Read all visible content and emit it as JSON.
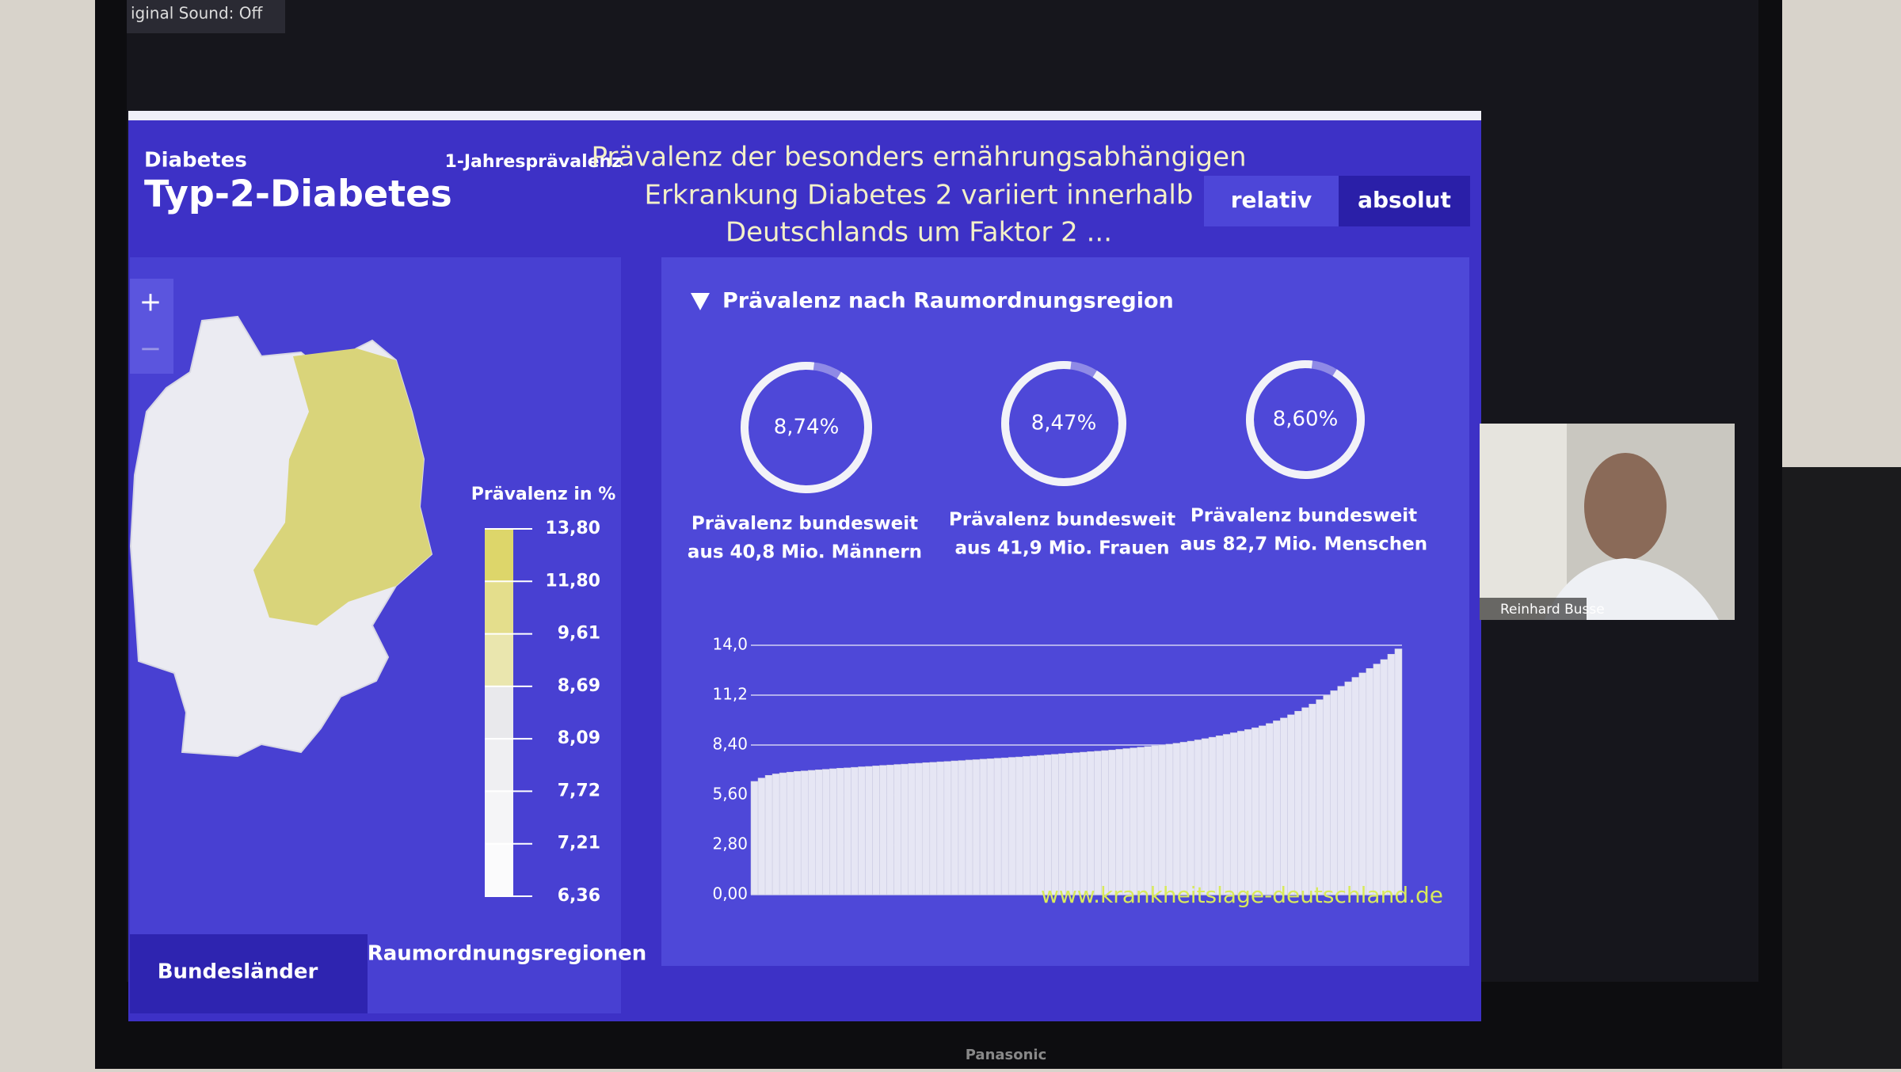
{
  "top_bar": {
    "sound": "iginal Sound: Off"
  },
  "header": {
    "category": "Diabetes",
    "title": "Typ-2-Diabetes",
    "measure": "1-Jahresprävalenz",
    "headline": [
      "Prävalenz der besonders ernährungsabhängigen",
      "Erkrankung Diabetes 2 variiert innerhalb",
      "Deutschlands um Faktor 2 ..."
    ]
  },
  "toggle": {
    "options": [
      "relativ",
      "absolut"
    ]
  },
  "map": {
    "zoom_in": "+",
    "zoom_out": "−",
    "legend_title": "Prävalenz in %",
    "legend_ticks": [
      {
        "value": 13.8,
        "label": "13,80"
      },
      {
        "value": 11.8,
        "label": "11,80"
      },
      {
        "value": 9.61,
        "label": "9,61"
      },
      {
        "value": 8.69,
        "label": "8,69"
      },
      {
        "value": 8.09,
        "label": "8,09"
      },
      {
        "value": 7.72,
        "label": "7,72"
      },
      {
        "value": 7.21,
        "label": "7,21"
      },
      {
        "value": 6.36,
        "label": "6,36"
      }
    ],
    "tabs": [
      "Bundesländer",
      "Raumordnungsregionen"
    ]
  },
  "panel": {
    "heading": "Prävalenz nach Raumordnungsregion",
    "donuts": [
      {
        "value": 8.74,
        "label": "8,74%",
        "caption": [
          "Prävalenz bundesweit",
          "aus 40,8 Mio. Männern"
        ]
      },
      {
        "value": 8.47,
        "label": "8,47%",
        "caption": [
          "Prävalenz bundesweit",
          "aus 41,9 Mio. Frauen"
        ]
      },
      {
        "value": 8.6,
        "label": "8,60%",
        "caption": [
          "Prävalenz bundesweit",
          "aus 82,7 Mio. Menschen"
        ]
      }
    ],
    "url": "www.krankheitslage-deutschland.de"
  },
  "chart": {
    "type": "bar",
    "ylim": [
      0,
      14
    ],
    "yticks": [
      {
        "value": 0,
        "label": "0,00"
      },
      {
        "value": 2.8,
        "label": "2,80"
      },
      {
        "value": 5.6,
        "label": "5,60"
      },
      {
        "value": 8.4,
        "label": "8,40"
      },
      {
        "value": 11.2,
        "label": "11,2"
      },
      {
        "value": 14,
        "label": "14,0"
      }
    ],
    "values": [
      6.36,
      6.55,
      6.7,
      6.78,
      6.84,
      6.88,
      6.92,
      6.95,
      6.98,
      7.01,
      7.04,
      7.07,
      7.1,
      7.12,
      7.15,
      7.18,
      7.2,
      7.23,
      7.26,
      7.28,
      7.31,
      7.33,
      7.36,
      7.38,
      7.41,
      7.43,
      7.46,
      7.48,
      7.51,
      7.53,
      7.56,
      7.58,
      7.61,
      7.63,
      7.66,
      7.68,
      7.71,
      7.73,
      7.76,
      7.79,
      7.82,
      7.85,
      7.88,
      7.91,
      7.94,
      7.97,
      8.0,
      8.03,
      8.06,
      8.09,
      8.12,
      8.16,
      8.2,
      8.24,
      8.28,
      8.32,
      8.36,
      8.4,
      8.45,
      8.5,
      8.56,
      8.62,
      8.69,
      8.76,
      8.84,
      8.92,
      9.0,
      9.09,
      9.18,
      9.27,
      9.37,
      9.48,
      9.61,
      9.76,
      9.92,
      10.1,
      10.3,
      10.5,
      10.7,
      10.95,
      11.2,
      11.45,
      11.7,
      11.95,
      12.2,
      12.45,
      12.7,
      12.95,
      13.2,
      13.5,
      13.8
    ],
    "color": "#e6e6f4",
    "grid": true
  },
  "webcam": {
    "name": "Reinhard Busse"
  },
  "monitor": {
    "brand": "Panasonic"
  }
}
